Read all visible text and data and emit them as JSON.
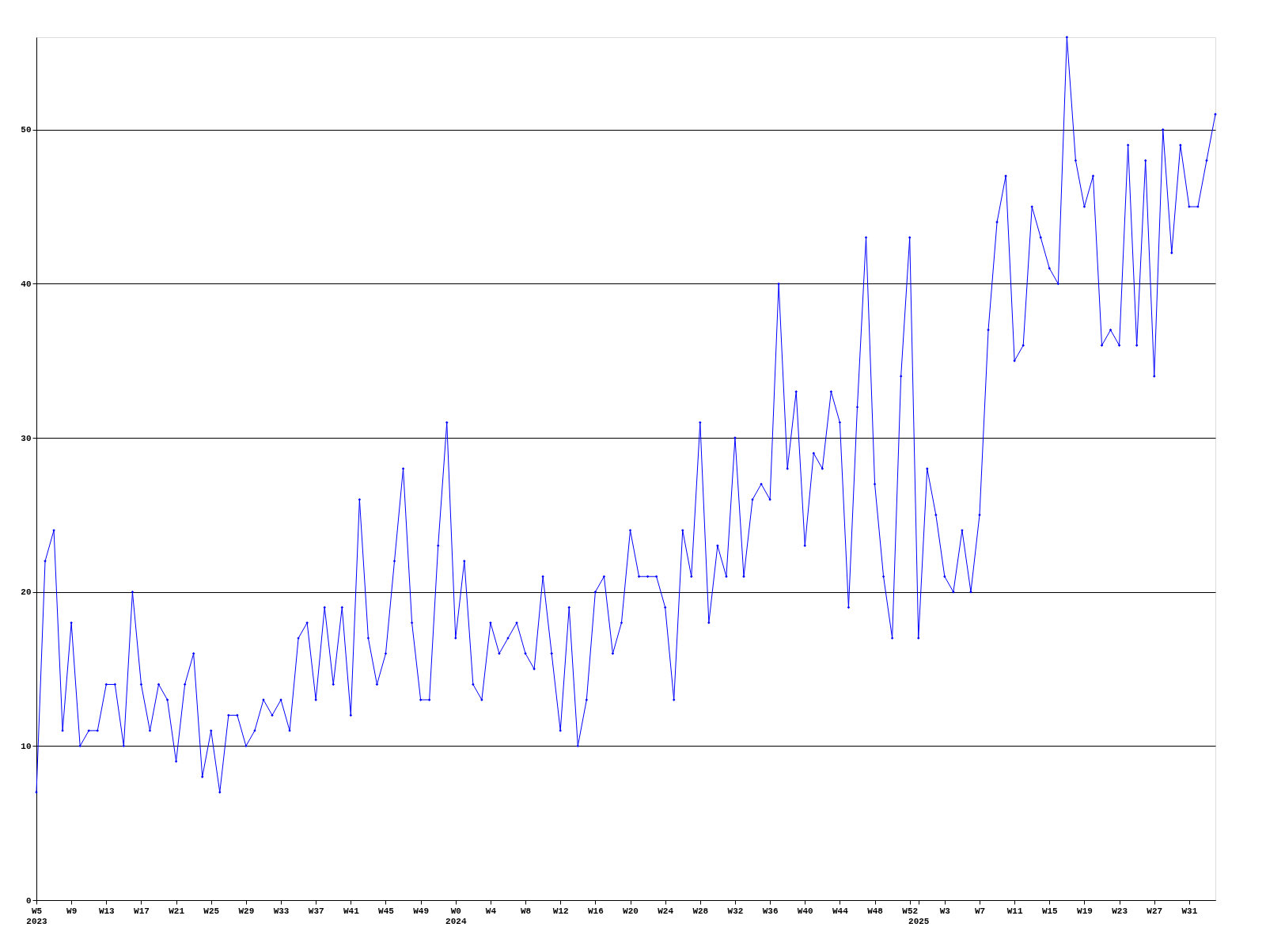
{
  "chart_data": {
    "type": "line",
    "categories": [
      "W5\n2023",
      null,
      null,
      null,
      "W9",
      null,
      null,
      null,
      "W13",
      null,
      null,
      null,
      "W17",
      null,
      null,
      null,
      "W21",
      null,
      null,
      null,
      "W25",
      null,
      null,
      null,
      "W29",
      null,
      null,
      null,
      "W33",
      null,
      null,
      null,
      "W37",
      null,
      null,
      null,
      "W41",
      null,
      null,
      null,
      "W45",
      null,
      null,
      null,
      "W49",
      null,
      null,
      null,
      "W0\n2024",
      null,
      null,
      null,
      "W4",
      null,
      null,
      null,
      "W8",
      null,
      null,
      null,
      "W12",
      null,
      null,
      null,
      "W16",
      null,
      null,
      null,
      "W20",
      null,
      null,
      null,
      "W24",
      null,
      null,
      null,
      "W28",
      null,
      null,
      null,
      "W32",
      null,
      null,
      null,
      "W36",
      null,
      null,
      null,
      "W40",
      null,
      null,
      null,
      "W44",
      null,
      null,
      null,
      "W48",
      null,
      null,
      null,
      "W52",
      "\n2025",
      null,
      null,
      "W3",
      null,
      null,
      null,
      "W7",
      null,
      null,
      null,
      "W11",
      null,
      null,
      null,
      "W15",
      null,
      null,
      null,
      "W19",
      null,
      null,
      null,
      "W23",
      null,
      null,
      null,
      "W27",
      null,
      null,
      null,
      "W31",
      null,
      null,
      null
    ],
    "series": [
      {
        "color": "#0000ff",
        "values": [
          7,
          22,
          24,
          11,
          18,
          10,
          11,
          11,
          14,
          14,
          10,
          20,
          14,
          11,
          14,
          13,
          9,
          14,
          16,
          8,
          11,
          7,
          12,
          12,
          10,
          11,
          13,
          12,
          13,
          11,
          17,
          18,
          13,
          19,
          14,
          19,
          12,
          26,
          17,
          14,
          16,
          22,
          28,
          18,
          13,
          13,
          23,
          31,
          17,
          22,
          14,
          13,
          18,
          16,
          17,
          18,
          16,
          15,
          21,
          16,
          11,
          19,
          10,
          13,
          20,
          21,
          16,
          18,
          24,
          21,
          21,
          21,
          19,
          13,
          24,
          21,
          31,
          18,
          23,
          21,
          30,
          21,
          26,
          27,
          26,
          40,
          28,
          33,
          23,
          29,
          28,
          33,
          31,
          19,
          32,
          43,
          27,
          21,
          17,
          34,
          43,
          17,
          28,
          25,
          21,
          20,
          24,
          20,
          25,
          37,
          44,
          47,
          35,
          36,
          45,
          43,
          41,
          40,
          56,
          48,
          45,
          47,
          36,
          37,
          36,
          49,
          36,
          48,
          34,
          50,
          42,
          49,
          45,
          45,
          48,
          51
        ]
      }
    ],
    "ylim": [
      0,
      56
    ],
    "yticks": [
      0,
      10,
      20,
      30,
      40,
      50
    ],
    "grid": "y",
    "marker": "diamond"
  }
}
